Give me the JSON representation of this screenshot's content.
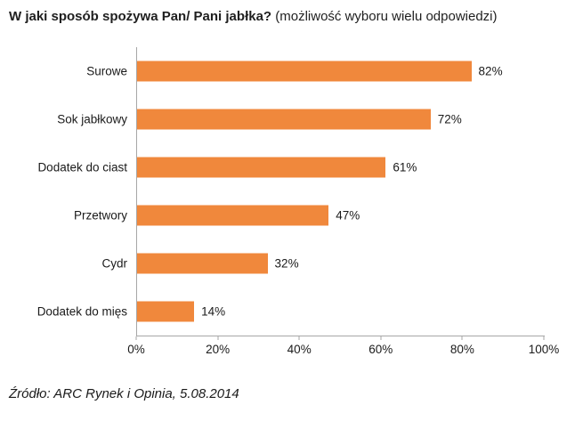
{
  "header": {
    "title_bold": "W jaki sposób spożywa Pan/ Pani jabłka?",
    "title_normal": "(możliwość wyboru wielu odpowiedzi)"
  },
  "chart_data": {
    "type": "bar",
    "orientation": "horizontal",
    "title": "W jaki sposób spożywa Pan/ Pani jabłka? (możliwość wyboru wielu odpowiedzi)",
    "categories": [
      "Surowe",
      "Sok jabłkowy",
      "Dodatek do ciast",
      "Przetwory",
      "Cydr",
      "Dodatek do mięs"
    ],
    "values": [
      82,
      72,
      61,
      47,
      32,
      14
    ],
    "value_labels": [
      "82%",
      "72%",
      "61%",
      "47%",
      "32%",
      "14%"
    ],
    "xlabel": "",
    "ylabel": "",
    "xlim": [
      0,
      100
    ],
    "x_ticks": [
      "0%",
      "20%",
      "40%",
      "60%",
      "80%",
      "100%"
    ],
    "bar_color": "#F0883C",
    "axis_color": "#A6A6A6",
    "grid": false,
    "legend": false
  },
  "footer": {
    "source": "Źródło: ARC Rynek i Opinia, 5.08.2014"
  }
}
